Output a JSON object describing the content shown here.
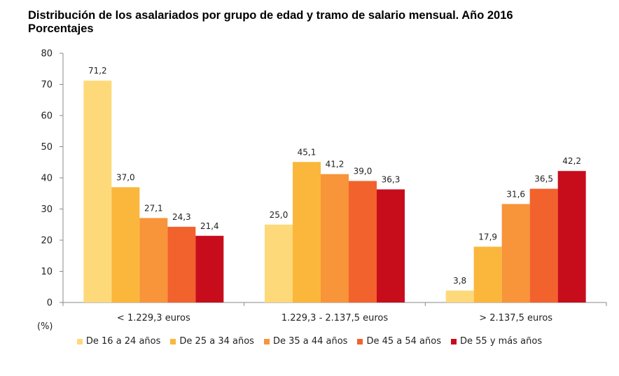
{
  "chart_data": {
    "type": "bar",
    "title": "Distribución de los asalariados por grupo de edad y tramo de salario mensual. Año 2016",
    "subtitle": "Porcentajes",
    "ylabel": "(%)",
    "xlabel": "",
    "ylim": [
      0,
      80
    ],
    "yticks": [
      0,
      10,
      20,
      30,
      40,
      50,
      60,
      70,
      80
    ],
    "categories": [
      "< 1.229,3 euros",
      "1.229,3 - 2.137,5 euros",
      "> 2.137,5 euros"
    ],
    "series": [
      {
        "name": "De 16 a 24 años",
        "color": "#FDD97A",
        "values": [
          71.2,
          25.0,
          3.8
        ],
        "labels": [
          "71,2",
          "25,0",
          "3,8"
        ]
      },
      {
        "name": "De 25 a 34 años",
        "color": "#FBB73C",
        "values": [
          37.0,
          45.1,
          17.9
        ],
        "labels": [
          "37,0",
          "45,1",
          "17,9"
        ]
      },
      {
        "name": "De 35 a 44 años",
        "color": "#F8943A",
        "values": [
          27.1,
          41.2,
          31.6
        ],
        "labels": [
          "27,1",
          "41,2",
          "31,6"
        ]
      },
      {
        "name": "De 45 a 54 años",
        "color": "#F2622C",
        "values": [
          24.3,
          39.0,
          36.5
        ],
        "labels": [
          "24,3",
          "39,0",
          "36,5"
        ]
      },
      {
        "name": "De 55 y más años",
        "color": "#C70D1C",
        "values": [
          21.4,
          36.3,
          42.2
        ],
        "labels": [
          "21,4",
          "36,3",
          "42,2"
        ]
      }
    ],
    "legend_position": "bottom",
    "grid": false
  }
}
